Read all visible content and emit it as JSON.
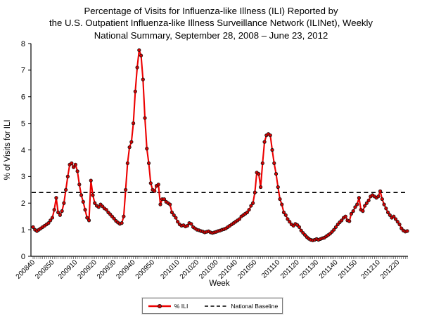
{
  "title": {
    "line1": "Percentage of Visits for Influenza-like Illness (ILI) Reported by",
    "line2": "the U.S. Outpatient Influenza-like Illness Surveillance Network (ILINet), Weekly",
    "line3": "National Summary, September 28, 2008 – June 23, 2012"
  },
  "legend": {
    "series_label": "% ILI",
    "baseline_label": "National Baseline"
  },
  "chart_data": {
    "type": "line",
    "title": "Percentage of Visits for Influenza-like Illness (ILI), ILINet Weekly National Summary",
    "xlabel": "Week",
    "ylabel": "% of Visits for ILI",
    "ylim": [
      0,
      8
    ],
    "y_ticks": [
      0,
      1,
      2,
      3,
      4,
      5,
      6,
      7,
      8
    ],
    "grid": false,
    "legend_position": "bottom-center",
    "line_color": "#ec0000",
    "marker_fill": "#d40000",
    "marker_edge": "#111111",
    "baseline": {
      "name": "National Baseline",
      "value": 2.4,
      "style": "dashed",
      "color": "#000000"
    },
    "x_ticks": [
      {
        "label": "200840",
        "index": 0
      },
      {
        "label": "200850",
        "index": 10
      },
      {
        "label": "200910",
        "index": 22
      },
      {
        "label": "200920",
        "index": 32
      },
      {
        "label": "200930",
        "index": 42
      },
      {
        "label": "200940",
        "index": 52
      },
      {
        "label": "200950",
        "index": 62
      },
      {
        "label": "201010",
        "index": 75
      },
      {
        "label": "201020",
        "index": 85
      },
      {
        "label": "201030",
        "index": 95
      },
      {
        "label": "201040",
        "index": 105
      },
      {
        "label": "201050",
        "index": 115
      },
      {
        "label": "201110",
        "index": 127
      },
      {
        "label": "201120",
        "index": 137
      },
      {
        "label": "201130",
        "index": 147
      },
      {
        "label": "201140",
        "index": 157
      },
      {
        "label": "201150",
        "index": 167
      },
      {
        "label": "201210",
        "index": 179
      },
      {
        "label": "201220",
        "index": 189
      }
    ],
    "series": [
      {
        "name": "% ILI",
        "start_week": "200840",
        "end_week": "201225",
        "values": [
          1.1,
          1.0,
          0.95,
          1.0,
          1.05,
          1.1,
          1.15,
          1.2,
          1.25,
          1.35,
          1.45,
          1.75,
          2.2,
          1.65,
          1.55,
          1.7,
          2.0,
          2.5,
          3.0,
          3.45,
          3.5,
          3.35,
          3.45,
          3.2,
          2.7,
          2.3,
          2.05,
          1.75,
          1.45,
          1.35,
          2.85,
          2.3,
          2.0,
          1.9,
          1.85,
          1.95,
          1.88,
          1.8,
          1.75,
          1.65,
          1.58,
          1.5,
          1.42,
          1.33,
          1.27,
          1.22,
          1.25,
          1.5,
          2.5,
          3.5,
          4.1,
          4.3,
          5.0,
          6.2,
          7.1,
          7.75,
          7.55,
          6.65,
          5.2,
          4.05,
          3.5,
          2.75,
          2.5,
          2.45,
          2.65,
          2.7,
          1.95,
          2.15,
          2.15,
          2.05,
          2.0,
          1.95,
          1.65,
          1.55,
          1.45,
          1.3,
          1.2,
          1.15,
          1.17,
          1.12,
          1.15,
          1.25,
          1.22,
          1.1,
          1.05,
          1.0,
          0.98,
          0.95,
          0.93,
          0.9,
          0.92,
          0.94,
          0.9,
          0.88,
          0.9,
          0.92,
          0.95,
          0.97,
          1.0,
          1.02,
          1.05,
          1.1,
          1.15,
          1.2,
          1.25,
          1.3,
          1.35,
          1.4,
          1.5,
          1.55,
          1.6,
          1.65,
          1.75,
          1.9,
          2.0,
          2.4,
          3.15,
          3.1,
          2.6,
          3.5,
          4.3,
          4.55,
          4.6,
          4.55,
          4.0,
          3.5,
          3.1,
          2.6,
          2.15,
          1.95,
          1.65,
          1.55,
          1.4,
          1.3,
          1.2,
          1.15,
          1.22,
          1.18,
          1.1,
          0.97,
          0.88,
          0.8,
          0.72,
          0.66,
          0.62,
          0.6,
          0.62,
          0.65,
          0.62,
          0.65,
          0.68,
          0.7,
          0.75,
          0.8,
          0.85,
          0.92,
          1.0,
          1.1,
          1.2,
          1.28,
          1.35,
          1.45,
          1.5,
          1.35,
          1.32,
          1.6,
          1.7,
          1.85,
          1.95,
          2.2,
          1.75,
          1.7,
          1.9,
          2.0,
          2.1,
          2.25,
          2.3,
          2.25,
          2.2,
          2.25,
          2.45,
          2.15,
          1.95,
          1.8,
          1.65,
          1.55,
          1.45,
          1.5,
          1.4,
          1.3,
          1.2,
          1.05,
          0.97,
          0.93,
          0.95
        ]
      }
    ]
  }
}
